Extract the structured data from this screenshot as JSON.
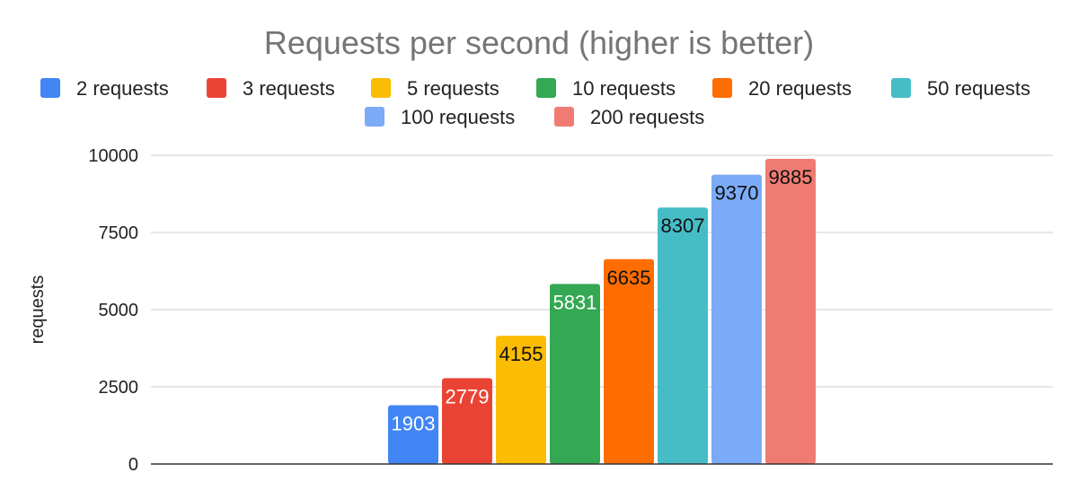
{
  "chart_data": {
    "type": "bar",
    "title": "Requests per second (higher is better)",
    "xlabel": "",
    "ylabel": "requests",
    "ylim": [
      0,
      10000
    ],
    "yticks": [
      0,
      2500,
      5000,
      7500,
      10000
    ],
    "grid": true,
    "legend_position": "top",
    "series": [
      {
        "name": "2 requests",
        "value": 1903,
        "color": "#4285F4",
        "label_color": "#ffffff"
      },
      {
        "name": "3 requests",
        "value": 2779,
        "color": "#EA4335",
        "label_color": "#ffffff"
      },
      {
        "name": "5 requests",
        "value": 4155,
        "color": "#FBBC04",
        "label_color": "#111111"
      },
      {
        "name": "10 requests",
        "value": 5831,
        "color": "#34A853",
        "label_color": "#ffffff"
      },
      {
        "name": "20 requests",
        "value": 6635,
        "color": "#FF6D01",
        "label_color": "#111111"
      },
      {
        "name": "50 requests",
        "value": 8307,
        "color": "#46BDC6",
        "label_color": "#111111"
      },
      {
        "name": "100 requests",
        "value": 9370,
        "color": "#7BAAF7",
        "label_color": "#111111"
      },
      {
        "name": "200 requests",
        "value": 9885,
        "color": "#F07B72",
        "label_color": "#111111"
      }
    ]
  }
}
